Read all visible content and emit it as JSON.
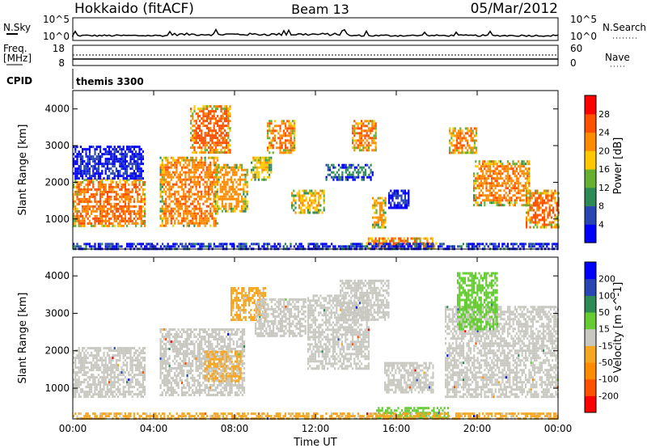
{
  "header": {
    "station": "Hokkaido (fitACF)",
    "beam": "Beam 13",
    "date": "05/Mar/2012"
  },
  "summary_panels": {
    "nsky": {
      "left_label": "N.Sky",
      "left_ticks": [
        "10^5",
        "10^0"
      ],
      "right_label": "N.Search",
      "right_ticks": [
        "10^5",
        "10^0"
      ]
    },
    "freq": {
      "left_label_line1": "Freq.",
      "left_label_line2": "[MHz]",
      "left_ticks": [
        "18",
        "8"
      ],
      "right_label": "Nave",
      "right_ticks": [
        "60",
        "0"
      ]
    },
    "cpid": {
      "left_label": "CPID",
      "program": "themis 3300"
    }
  },
  "chart_data": [
    {
      "type": "heatmap",
      "quantity": "Power",
      "ylabel": "Slant Range [km]",
      "xlabel": "Time UT",
      "xlim": [
        0,
        24
      ],
      "ylim": [
        180,
        4500
      ],
      "x_ticks": [
        "00:00",
        "04:00",
        "08:00",
        "12:00",
        "16:00",
        "20:00",
        "00:00"
      ],
      "y_ticks": [
        1000,
        2000,
        3000,
        4000
      ],
      "colorbar": {
        "label": "Power [dB]",
        "ticks": [
          "4",
          "8",
          "12",
          "16",
          "20",
          "24",
          "28"
        ],
        "colors": [
          "#0000ff",
          "#2846b4",
          "#2e8a57",
          "#66b032",
          "#ffc800",
          "#ff8c00",
          "#ff5000",
          "#ff0000"
        ],
        "range": [
          0,
          32
        ]
      },
      "regions": [
        {
          "t0": 0.0,
          "t1": 3.6,
          "r_lo": 780,
          "r_hi": 2100,
          "level": 26
        },
        {
          "t0": 0.0,
          "t1": 3.5,
          "r_lo": 2100,
          "r_hi": 3000,
          "level": 6
        },
        {
          "t0": 4.3,
          "t1": 7.2,
          "r_lo": 800,
          "r_hi": 2700,
          "level": 25
        },
        {
          "t0": 5.8,
          "t1": 7.8,
          "r_lo": 2800,
          "r_hi": 4100,
          "level": 27
        },
        {
          "t0": 7.0,
          "t1": 8.6,
          "r_lo": 1200,
          "r_hi": 2500,
          "level": 24
        },
        {
          "t0": 8.8,
          "t1": 9.8,
          "r_lo": 2100,
          "r_hi": 2700,
          "level": 22
        },
        {
          "t0": 9.6,
          "t1": 11.0,
          "r_lo": 2800,
          "r_hi": 3700,
          "level": 26
        },
        {
          "t0": 10.8,
          "t1": 12.4,
          "r_lo": 1200,
          "r_hi": 1800,
          "level": 22
        },
        {
          "t0": 12.5,
          "t1": 14.8,
          "r_lo": 2100,
          "r_hi": 2500,
          "level": 12
        },
        {
          "t0": 13.8,
          "t1": 15.0,
          "r_lo": 2900,
          "r_hi": 3700,
          "level": 26
        },
        {
          "t0": 14.8,
          "t1": 15.5,
          "r_lo": 800,
          "r_hi": 1600,
          "level": 24
        },
        {
          "t0": 15.6,
          "t1": 16.6,
          "r_lo": 1300,
          "r_hi": 1800,
          "level": 8
        },
        {
          "t0": 18.6,
          "t1": 20.0,
          "r_lo": 2800,
          "r_hi": 3500,
          "level": 26
        },
        {
          "t0": 19.8,
          "t1": 22.6,
          "r_lo": 1400,
          "r_hi": 2600,
          "level": 25
        },
        {
          "t0": 22.4,
          "t1": 24.0,
          "r_lo": 800,
          "r_hi": 1800,
          "level": 27
        },
        {
          "t0": 14.5,
          "t1": 18.0,
          "r_lo": 200,
          "r_hi": 500,
          "level": 28
        },
        {
          "t0": 0.0,
          "t1": 24.0,
          "r_lo": 200,
          "r_hi": 350,
          "level": 10
        }
      ]
    },
    {
      "type": "heatmap",
      "quantity": "Velocity",
      "ylabel": "Slant Range [km]",
      "xlabel": "Time UT",
      "xlim": [
        0,
        24
      ],
      "ylim": [
        180,
        4500
      ],
      "x_ticks": [
        "00:00",
        "04:00",
        "08:00",
        "12:00",
        "16:00",
        "20:00",
        "00:00"
      ],
      "y_ticks": [
        1000,
        2000,
        3000,
        4000
      ],
      "colorbar": {
        "label": "Velocity [m s^-1]",
        "ticks": [
          "200",
          "100",
          "50",
          "15",
          "-15",
          "-50",
          "-100",
          "-200"
        ],
        "colors": [
          "#ff0000",
          "#ff5000",
          "#ff8c00",
          "#f5a623",
          "#c8c8c0",
          "#66cc33",
          "#2e8a57",
          "#2846b4",
          "#0000ff"
        ],
        "range": [
          -250,
          250
        ]
      },
      "regions": [
        {
          "t0": 0.0,
          "t1": 3.6,
          "r_lo": 780,
          "r_hi": 2100,
          "level": 0
        },
        {
          "t0": 4.3,
          "t1": 8.5,
          "r_lo": 800,
          "r_hi": 2600,
          "level": 0
        },
        {
          "t0": 6.5,
          "t1": 8.3,
          "r_lo": 1200,
          "r_hi": 2000,
          "level": -40
        },
        {
          "t0": 7.8,
          "t1": 9.5,
          "r_lo": 2800,
          "r_hi": 3700,
          "level": -40
        },
        {
          "t0": 9.0,
          "t1": 11.5,
          "r_lo": 2400,
          "r_hi": 3400,
          "level": 0
        },
        {
          "t0": 11.6,
          "t1": 14.6,
          "r_lo": 1500,
          "r_hi": 3500,
          "level": 0
        },
        {
          "t0": 13.2,
          "t1": 15.6,
          "r_lo": 2800,
          "r_hi": 3900,
          "level": 0
        },
        {
          "t0": 15.4,
          "t1": 17.8,
          "r_lo": 900,
          "r_hi": 1700,
          "level": 0
        },
        {
          "t0": 18.4,
          "t1": 24.0,
          "r_lo": 800,
          "r_hi": 3200,
          "level": 0
        },
        {
          "t0": 19.0,
          "t1": 21.0,
          "r_lo": 2600,
          "r_hi": 4100,
          "level": 60
        },
        {
          "t0": 15.0,
          "t1": 18.6,
          "r_lo": 200,
          "r_hi": 500,
          "level": 60
        },
        {
          "t0": 0.0,
          "t1": 24.0,
          "r_lo": 200,
          "r_hi": 350,
          "level": -40
        }
      ]
    }
  ]
}
